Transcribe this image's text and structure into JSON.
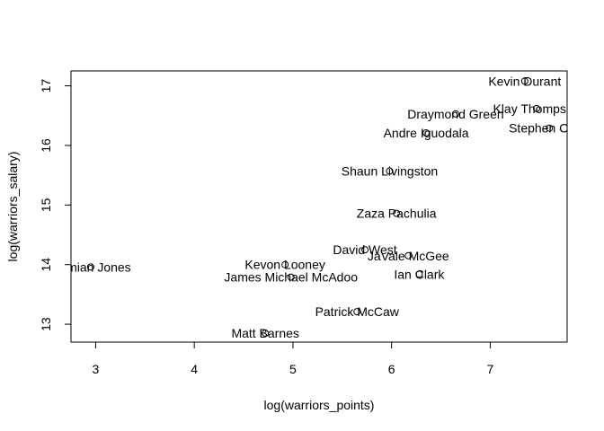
{
  "chart_data": {
    "type": "scatter",
    "title": "",
    "xlabel": "log(warriors_points)",
    "ylabel": "log(warriors_salary)",
    "xlim": [
      2.75,
      7.78
    ],
    "ylim": [
      12.7,
      17.25
    ],
    "xticks": [
      "3",
      "4",
      "5",
      "6",
      "7"
    ],
    "yticks": [
      "13",
      "14",
      "15",
      "16",
      "17"
    ],
    "grid": false,
    "legend": "none",
    "point_color": "#000000",
    "points": [
      {
        "label": "Kevin Durant",
        "x": 7.35,
        "y": 17.08
      },
      {
        "label": "Klay Thompson",
        "x": 7.47,
        "y": 16.62
      },
      {
        "label": "Stephen Curry",
        "x": 7.6,
        "y": 16.29
      },
      {
        "label": "Draymond Green",
        "x": 6.65,
        "y": 16.53
      },
      {
        "label": "Andre Iguodala",
        "x": 6.35,
        "y": 16.21
      },
      {
        "label": "Shaun Livingston",
        "x": 5.98,
        "y": 15.57
      },
      {
        "label": "Zaza Pachulia",
        "x": 6.05,
        "y": 14.86
      },
      {
        "label": "David West",
        "x": 5.73,
        "y": 14.25
      },
      {
        "label": "JaVale McGee",
        "x": 6.17,
        "y": 14.15
      },
      {
        "label": "Ian Clark",
        "x": 6.28,
        "y": 13.84
      },
      {
        "label": "Damian Jones",
        "x": 2.95,
        "y": 13.96
      },
      {
        "label": "Kevon Looney",
        "x": 4.92,
        "y": 14.0
      },
      {
        "label": "James Michael McAdoo",
        "x": 4.98,
        "y": 13.79
      },
      {
        "label": "Patrick McCaw",
        "x": 5.65,
        "y": 13.21
      },
      {
        "label": "Matt Barnes",
        "x": 4.72,
        "y": 12.85
      }
    ]
  }
}
